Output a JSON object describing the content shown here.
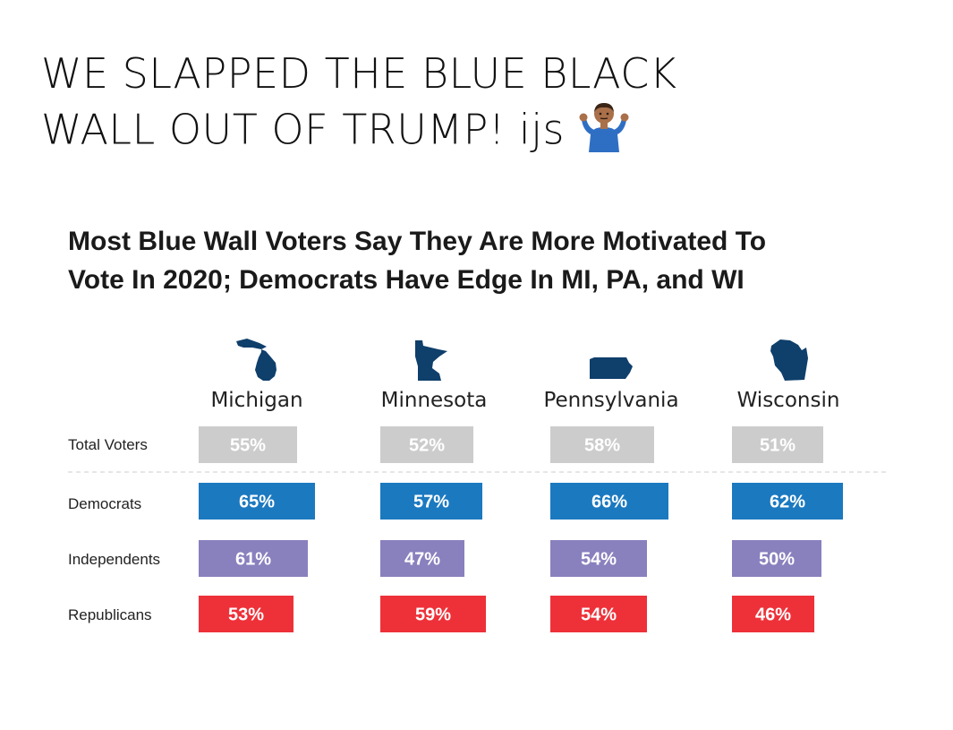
{
  "caption": {
    "line1": "WE SLAPPED THE BLUE BLACK",
    "line2": "WALL OUT OF TRUMP! ijs",
    "emoji": "person-shrugging"
  },
  "chart_data": {
    "type": "bar",
    "title_line1": "Most Blue Wall Voters Say They Are More Motivated To",
    "title_line2": "Vote In 2020; Democrats Have Edge In MI, PA, and WI",
    "categories": [
      "Michigan",
      "Minnesota",
      "Pennsylvania",
      "Wisconsin"
    ],
    "series": [
      {
        "name": "Total Voters",
        "values": [
          55,
          52,
          58,
          51
        ],
        "labels": [
          "55%",
          "52%",
          "58%",
          "51%"
        ],
        "color": "#cccccc"
      },
      {
        "name": "Democrats",
        "values": [
          65,
          57,
          66,
          62
        ],
        "labels": [
          "65%",
          "57%",
          "66%",
          "62%"
        ],
        "color": "#1b79c0"
      },
      {
        "name": "Independents",
        "values": [
          61,
          47,
          54,
          50
        ],
        "labels": [
          "61%",
          "47%",
          "54%",
          "50%"
        ],
        "color": "#8980be"
      },
      {
        "name": "Republicans",
        "values": [
          53,
          59,
          54,
          46
        ],
        "labels": [
          "53%",
          "59%",
          "54%",
          "46%"
        ],
        "color": "#ee3139"
      }
    ],
    "state_icon_color": "#0f3f6b",
    "separator_after_series": "Total Voters"
  }
}
